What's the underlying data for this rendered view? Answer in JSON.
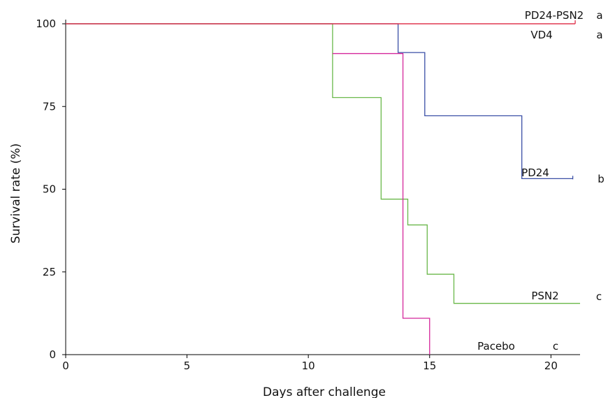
{
  "chart_data": {
    "type": "line",
    "step": true,
    "xlabel": "Days after challenge",
    "ylabel": "Survival rate (%)",
    "xlim": [
      0,
      21.2
    ],
    "ylim": [
      0,
      100
    ],
    "xticks": [
      0,
      5,
      10,
      15,
      20
    ],
    "yticks": [
      0,
      25,
      50,
      75,
      100
    ],
    "grid": false,
    "series": [
      {
        "name": "PD24-PSN2",
        "sig": "a",
        "color": "#e0304a",
        "points": [
          [
            0,
            100
          ],
          [
            21,
            100
          ]
        ]
      },
      {
        "name": "VD4",
        "sig": "a",
        "color": "#e0304a",
        "points": [
          [
            0,
            100
          ],
          [
            21,
            100
          ]
        ]
      },
      {
        "name": "PD24",
        "sig": "b",
        "color": "#3a4fa6",
        "points": [
          [
            0,
            100
          ],
          [
            13.7,
            100
          ],
          [
            13.7,
            91.3
          ],
          [
            14.8,
            91.3
          ],
          [
            14.8,
            72.2
          ],
          [
            18.8,
            72.2
          ],
          [
            18.8,
            53.2
          ],
          [
            20.9,
            53.2
          ]
        ]
      },
      {
        "name": "PSN2",
        "sig": "c",
        "color": "#6ab84a",
        "points": [
          [
            0,
            100
          ],
          [
            11,
            100
          ],
          [
            11,
            77.7
          ],
          [
            13,
            77.7
          ],
          [
            13,
            47
          ],
          [
            14.1,
            47
          ],
          [
            14.1,
            39.2
          ],
          [
            14.9,
            39.2
          ],
          [
            14.9,
            24.3
          ],
          [
            16,
            24.3
          ],
          [
            16,
            15.5
          ],
          [
            21.2,
            15.5
          ]
        ]
      },
      {
        "name": "Pacebo",
        "sig": "c",
        "color": "#d4269b",
        "points": [
          [
            11,
            91
          ],
          [
            13.9,
            91
          ],
          [
            13.9,
            11
          ],
          [
            15,
            11
          ],
          [
            15,
            0
          ]
        ]
      }
    ]
  }
}
